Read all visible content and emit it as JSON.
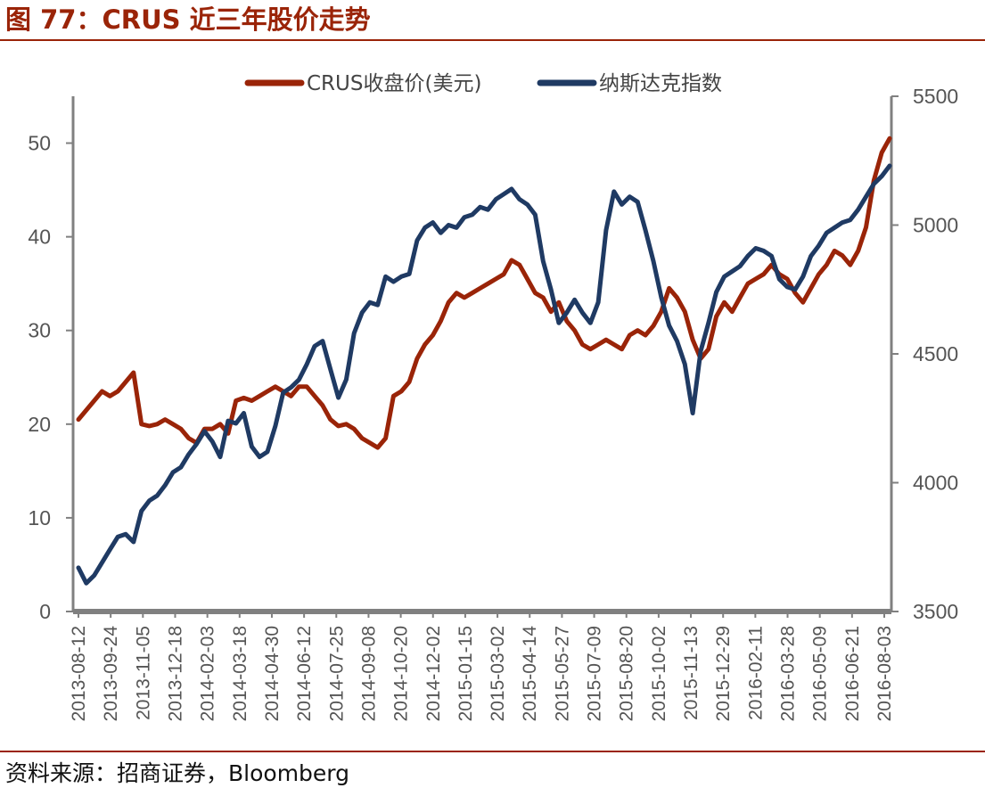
{
  "header": {
    "title": "图 77：CRUS 近三年股价走势"
  },
  "footer": {
    "source": "资料来源：招商证券，Bloomberg"
  },
  "colors": {
    "accent": "#9a2408",
    "crus": "#9a2408",
    "nasdaq": "#1f3a63",
    "axis": "#808080"
  },
  "chart_data": {
    "type": "line",
    "title": "",
    "xlabel": "",
    "ylabel": "",
    "grid": false,
    "legend": "top-center",
    "x_ticks": [
      "2013-08-12",
      "2013-09-24",
      "2013-11-05",
      "2013-12-18",
      "2014-02-03",
      "2014-03-18",
      "2014-04-30",
      "2014-06-12",
      "2014-07-25",
      "2014-09-08",
      "2014-10-20",
      "2014-12-02",
      "2015-01-15",
      "2015-03-02",
      "2015-04-14",
      "2015-05-27",
      "2015-07-09",
      "2015-08-20",
      "2015-10-02",
      "2015-11-13",
      "2015-12-29",
      "2016-02-11",
      "2016-03-28",
      "2016-05-09",
      "2016-06-21",
      "2016-08-03"
    ],
    "y_left": {
      "min": 0,
      "max": 55,
      "ticks": [
        0,
        10,
        20,
        30,
        40,
        50
      ]
    },
    "y_right": {
      "min": 3500,
      "max": 5500,
      "ticks": [
        3500,
        4000,
        4500,
        5000,
        5500
      ]
    },
    "series": [
      {
        "name": "CRUS收盘价(美元)",
        "axis": "left",
        "color": "#9a2408",
        "values": [
          20.5,
          21.5,
          22.5,
          23.5,
          23.0,
          23.5,
          24.5,
          25.5,
          20.0,
          19.8,
          20.0,
          20.5,
          20.0,
          19.5,
          18.5,
          18.0,
          19.5,
          19.5,
          20.0,
          19.0,
          22.5,
          22.8,
          22.5,
          23.0,
          23.5,
          24.0,
          23.5,
          23.0,
          24.0,
          24.0,
          23.0,
          22.0,
          20.5,
          19.8,
          20.0,
          19.5,
          18.5,
          18.0,
          17.5,
          18.5,
          23.0,
          23.5,
          24.5,
          27.0,
          28.5,
          29.5,
          31.0,
          33.0,
          34.0,
          33.5,
          34.0,
          34.5,
          35.0,
          35.5,
          36.0,
          37.5,
          37.0,
          35.5,
          34.0,
          33.5,
          32.0,
          33.0,
          31.0,
          30.0,
          28.5,
          28.0,
          28.5,
          29.0,
          28.5,
          28.0,
          29.5,
          30.0,
          29.5,
          30.5,
          32.0,
          34.5,
          33.5,
          32.0,
          29.0,
          27.0,
          28.0,
          31.5,
          33.0,
          32.0,
          33.5,
          35.0,
          35.5,
          36.0,
          37.0,
          36.0,
          35.5,
          34.0,
          33.0,
          34.5,
          36.0,
          37.0,
          38.5,
          38.0,
          37.0,
          38.5,
          41.0,
          46.0,
          49.0,
          50.5
        ]
      },
      {
        "name": "纳斯达克指数",
        "axis": "right",
        "color": "#1f3a63",
        "values": [
          3670,
          3610,
          3640,
          3690,
          3740,
          3790,
          3800,
          3770,
          3890,
          3930,
          3950,
          3990,
          4040,
          4060,
          4110,
          4150,
          4200,
          4160,
          4100,
          4240,
          4230,
          4270,
          4140,
          4100,
          4120,
          4220,
          4350,
          4370,
          4400,
          4460,
          4530,
          4550,
          4440,
          4330,
          4400,
          4580,
          4660,
          4700,
          4690,
          4800,
          4780,
          4800,
          4810,
          4940,
          4990,
          5010,
          4970,
          5000,
          4990,
          5030,
          5040,
          5070,
          5060,
          5100,
          5120,
          5140,
          5100,
          5080,
          5040,
          4860,
          4750,
          4620,
          4660,
          4710,
          4660,
          4620,
          4700,
          4980,
          5130,
          5080,
          5110,
          5090,
          4980,
          4860,
          4720,
          4610,
          4550,
          4460,
          4270,
          4510,
          4620,
          4740,
          4800,
          4820,
          4840,
          4880,
          4910,
          4900,
          4880,
          4790,
          4760,
          4750,
          4800,
          4880,
          4920,
          4970,
          4990,
          5010,
          5020,
          5060,
          5110,
          5160,
          5190,
          5230
        ]
      }
    ]
  }
}
